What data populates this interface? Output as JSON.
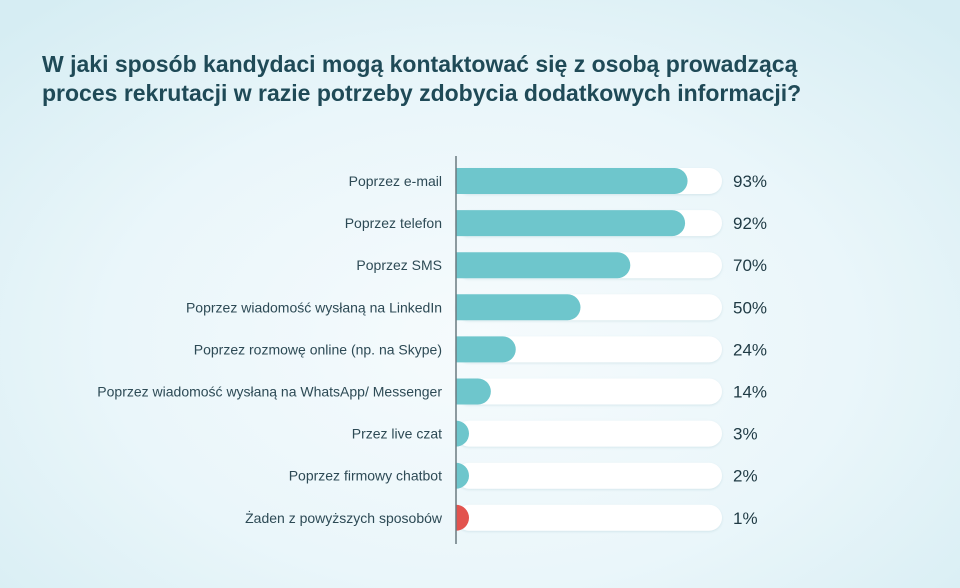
{
  "title": {
    "line1": "W jaki sposób kandydaci mogą kontaktować się z osobą prowadzącą",
    "line2": "proces rekrutacji w razie potrzeby zdobycia dodatkowych informacji?"
  },
  "chart_data": {
    "type": "bar",
    "orientation": "horizontal",
    "title": "W jaki sposób kandydaci mogą kontaktować się z osobą prowadzącą proces rekrutacji w razie potrzeby zdobycia dodatkowych informacji?",
    "xlabel": "",
    "ylabel": "",
    "xlim": [
      0,
      100
    ],
    "unit": "%",
    "grid": false,
    "categories": [
      "Poprzez e-mail",
      "Poprzez telefon",
      "Poprzez SMS",
      "Poprzez wiadomość wysłaną na LinkedIn",
      "Poprzez rozmowę online (np. na Skype)",
      "Poprzez wiadomość wysłaną na WhatsApp/ Messenger",
      "Przez live czat",
      "Poprzez firmowy chatbot",
      "Żaden z powyższych sposobów"
    ],
    "values": [
      93,
      92,
      70,
      50,
      24,
      14,
      3,
      2,
      1
    ],
    "value_labels": [
      "93%",
      "92%",
      "70%",
      "50%",
      "24%",
      "14%",
      "3%",
      "2%",
      "1%"
    ],
    "colors": {
      "bar": "#6ec6cc",
      "bar_highlight": "#e2534e",
      "track": "#ffffff",
      "axis": "#6a7a80"
    },
    "highlight_index": 8
  }
}
